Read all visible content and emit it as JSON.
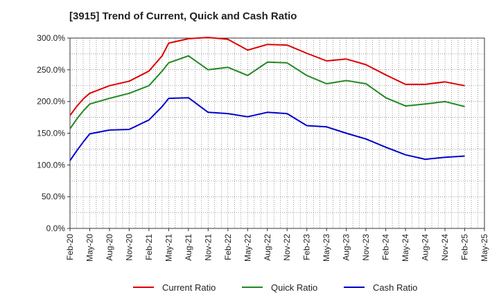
{
  "chart_data": {
    "type": "line",
    "title": "[3915]  Trend of Current, Quick and Cash Ratio",
    "xlabel": "",
    "ylabel": "",
    "ylim": [
      0,
      300
    ],
    "yticks": [
      0,
      50,
      100,
      150,
      200,
      250,
      300
    ],
    "ytick_labels": [
      "0.0%",
      "50.0%",
      "100.0%",
      "150.0%",
      "200.0%",
      "250.0%",
      "300.0%"
    ],
    "xtick_labels": [
      "Feb-20",
      "May-20",
      "Aug-20",
      "Nov-20",
      "Feb-21",
      "May-21",
      "Aug-21",
      "Nov-21",
      "Feb-22",
      "May-22",
      "Aug-22",
      "Nov-22",
      "Feb-23",
      "May-23",
      "Aug-23",
      "Nov-23",
      "Feb-24",
      "May-24",
      "Aug-24",
      "Nov-24",
      "Feb-25",
      "May-25"
    ],
    "x_months": [
      "2020-02",
      "2020-03",
      "2020-04",
      "2020-05",
      "2020-08",
      "2020-11",
      "2021-02",
      "2021-04",
      "2021-05",
      "2021-08",
      "2021-11",
      "2022-02",
      "2022-05",
      "2022-08",
      "2022-11",
      "2023-02",
      "2023-05",
      "2023-08",
      "2023-11",
      "2024-02",
      "2024-05",
      "2024-08",
      "2024-11",
      "2025-02"
    ],
    "x_index": [
      0,
      1,
      2,
      3,
      6,
      9,
      12,
      14,
      15,
      18,
      21,
      24,
      27,
      30,
      33,
      36,
      39,
      42,
      45,
      48,
      51,
      54,
      57,
      60
    ],
    "x_range": [
      0,
      63
    ],
    "grid": true,
    "legend_position": "bottom",
    "series": [
      {
        "name": "Current Ratio",
        "color": "#dd0000",
        "values": [
          178,
          192,
          204,
          213,
          225,
          232,
          248,
          272,
          292,
          299,
          301,
          298,
          281,
          290,
          289,
          276,
          264,
          267,
          258,
          242,
          227,
          227,
          231,
          225
        ]
      },
      {
        "name": "Quick Ratio",
        "color": "#228822",
        "values": [
          157,
          172,
          185,
          196,
          205,
          213,
          225,
          248,
          261,
          272,
          250,
          254,
          241,
          262,
          261,
          241,
          228,
          233,
          228,
          206,
          193,
          196,
          200,
          192
        ]
      },
      {
        "name": "Cash Ratio",
        "color": "#0000cc",
        "values": [
          107,
          122,
          136,
          149,
          155,
          156,
          171,
          192,
          205,
          206,
          183,
          181,
          176,
          183,
          181,
          162,
          160,
          150,
          141,
          128,
          116,
          109,
          112,
          114
        ]
      }
    ]
  }
}
